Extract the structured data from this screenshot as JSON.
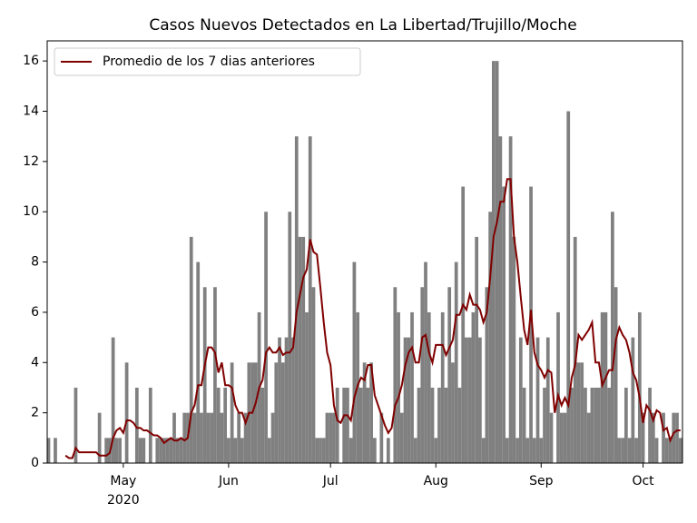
{
  "chart_data": {
    "type": "bar_line",
    "title": "Casos Nuevos Detectados en La Libertad/Trujillo/Moche",
    "x": [
      100,
      101,
      102,
      103,
      104,
      105,
      106,
      107,
      108,
      109,
      110,
      111,
      112,
      113,
      114,
      115,
      116,
      117,
      118,
      119,
      120,
      121,
      122,
      123,
      124,
      125,
      126,
      127,
      128,
      129,
      130,
      131,
      132,
      133,
      134,
      135,
      136,
      137,
      138,
      139,
      140,
      141,
      142,
      143,
      144,
      145,
      146,
      147,
      148,
      149,
      150,
      151,
      152,
      153,
      154,
      155,
      156,
      157,
      158,
      159,
      160,
      161,
      162,
      163,
      164,
      165,
      166,
      167,
      168,
      169,
      170,
      171,
      172,
      173,
      174,
      175,
      176,
      177,
      178,
      179,
      180,
      181,
      182,
      183,
      184,
      185,
      186,
      187,
      188,
      189,
      190,
      191,
      192,
      193,
      194,
      195,
      196,
      197,
      198,
      199,
      200,
      201,
      202,
      203,
      204,
      205,
      206,
      207,
      208,
      209,
      210,
      211,
      212,
      213,
      214,
      215,
      216,
      217,
      218,
      219,
      220,
      221,
      222,
      223,
      224,
      225,
      226,
      227,
      228,
      229,
      230,
      231,
      232,
      233,
      234,
      235,
      236,
      237,
      238,
      239,
      240,
      241,
      242,
      243,
      244,
      245,
      246,
      247,
      248,
      249,
      250,
      251,
      252,
      253,
      254,
      255,
      256,
      257,
      258,
      259,
      260,
      261,
      262,
      263,
      264,
      265,
      266,
      267,
      268,
      269,
      270,
      271,
      272,
      273,
      274,
      275,
      276,
      277,
      278,
      279,
      280,
      281,
      282,
      283,
      284,
      285,
      286
    ],
    "series": [
      {
        "kind": "bar",
        "color": "#808080",
        "values": [
          1,
          0,
          1,
          0,
          0,
          0,
          0,
          0,
          3,
          0,
          0,
          0,
          0,
          0,
          0,
          2,
          0,
          1,
          1,
          5,
          1,
          1,
          0,
          4,
          0,
          0,
          3,
          1,
          1,
          0,
          3,
          0,
          1,
          1,
          1,
          1,
          1,
          2,
          1,
          1,
          2,
          2,
          9,
          2,
          8,
          2,
          7,
          2,
          2,
          7,
          3,
          2,
          3,
          1,
          4,
          1,
          2,
          1,
          2,
          4,
          4,
          4,
          6,
          3,
          10,
          1,
          2,
          4,
          5,
          4,
          5,
          10,
          5,
          13,
          9,
          9,
          6,
          13,
          7,
          1,
          1,
          1,
          2,
          2,
          2,
          3,
          0,
          3,
          3,
          1,
          8,
          6,
          3,
          4,
          3,
          4,
          1,
          0,
          2,
          0,
          1,
          0,
          7,
          6,
          2,
          5,
          5,
          6,
          1,
          3,
          7,
          8,
          6,
          3,
          1,
          3,
          6,
          3,
          7,
          4,
          8,
          3,
          11,
          5,
          5,
          6,
          9,
          5,
          1,
          7,
          10,
          16,
          16,
          13,
          11,
          1,
          13,
          9,
          1,
          5,
          3,
          1,
          11,
          1,
          5,
          1,
          3,
          5,
          2,
          0,
          6,
          2,
          2,
          14,
          3,
          9,
          4,
          4,
          3,
          2,
          3,
          3,
          3,
          6,
          6,
          3,
          10,
          7,
          1,
          1,
          3,
          1,
          5,
          1,
          6,
          2,
          0,
          3,
          2,
          1,
          0,
          2,
          1,
          1,
          2,
          2,
          1
        ]
      },
      {
        "kind": "line",
        "name": "Promedio de los 7 dias anteriores",
        "color": "#800000",
        "values": [
          null,
          null,
          null,
          null,
          null,
          0.3,
          0.2,
          0.2,
          0.6,
          0.43,
          0.43,
          0.43,
          0.43,
          0.43,
          0.43,
          0.3,
          0.3,
          0.3,
          0.4,
          1.0,
          1.3,
          1.4,
          1.2,
          1.7,
          1.7,
          1.6,
          1.4,
          1.4,
          1.3,
          1.3,
          1.2,
          1.1,
          1.1,
          1.0,
          0.8,
          0.9,
          1.0,
          0.9,
          0.9,
          1.0,
          0.9,
          1.0,
          2.0,
          2.3,
          3.1,
          3.1,
          3.9,
          4.6,
          4.6,
          4.4,
          3.6,
          4.0,
          3.1,
          3.1,
          3.0,
          2.3,
          2.0,
          2.0,
          1.6,
          2.0,
          2.0,
          2.4,
          3.0,
          3.3,
          4.4,
          4.6,
          4.4,
          4.4,
          4.6,
          4.3,
          4.4,
          4.4,
          4.6,
          6.0,
          6.7,
          7.4,
          7.7,
          8.9,
          8.4,
          8.3,
          7.0,
          5.6,
          4.4,
          3.9,
          2.3,
          1.7,
          1.6,
          1.9,
          1.9,
          1.7,
          2.6,
          3.1,
          3.4,
          3.3,
          3.9,
          3.9,
          2.7,
          2.3,
          1.9,
          1.5,
          1.2,
          1.4,
          2.3,
          2.6,
          3.1,
          3.9,
          4.4,
          4.6,
          4.0,
          4.0,
          5.0,
          5.1,
          4.4,
          4.0,
          4.7,
          4.7,
          4.7,
          4.3,
          4.6,
          4.9,
          5.9,
          5.9,
          6.3,
          6.1,
          6.7,
          6.3,
          6.3,
          6.1,
          5.6,
          6.0,
          7.4,
          9.0,
          9.6,
          10.4,
          10.4,
          11.3,
          11.3,
          9.0,
          8.0,
          6.6,
          5.3,
          4.7,
          6.1,
          4.4,
          3.9,
          3.7,
          3.4,
          3.7,
          3.6,
          2.0,
          2.7,
          2.3,
          2.6,
          2.3,
          3.4,
          3.9,
          5.1,
          4.9,
          5.1,
          5.3,
          5.6,
          4.0,
          4.0,
          3.1,
          3.4,
          3.7,
          3.7,
          4.9,
          5.4,
          5.1,
          4.9,
          4.4,
          3.6,
          3.3,
          2.6,
          1.6,
          2.3,
          2.1,
          1.7,
          2.1,
          2.0,
          1.3,
          1.4,
          0.9,
          1.2,
          1.3,
          1.3
        ]
      }
    ],
    "xlim": [
      99.6,
      286.6
    ],
    "xticks": [
      {
        "value": 122,
        "label": "May"
      },
      {
        "value": 153,
        "label": "Jun"
      },
      {
        "value": 183,
        "label": "Jul"
      },
      {
        "value": 214,
        "label": "Aug"
      },
      {
        "value": 245,
        "label": "Sep"
      },
      {
        "value": 275,
        "label": "Oct"
      }
    ],
    "x_year_label": "2020",
    "ylim": [
      0,
      16.8
    ],
    "yticks": [
      0,
      2,
      4,
      6,
      8,
      10,
      12,
      14,
      16
    ],
    "legend": "upper left"
  }
}
